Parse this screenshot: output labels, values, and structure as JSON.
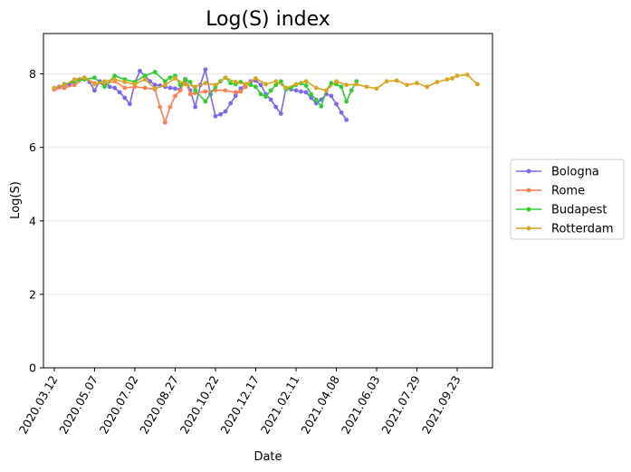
{
  "chart_data": {
    "type": "line",
    "title": "Log(S) index",
    "xlabel": "Date",
    "ylabel": "Log(S)",
    "ylim": [
      0,
      9.1
    ],
    "xlim": [
      "2020-02-26",
      "2021-11-11"
    ],
    "x_ticks": [
      "2020.03.12",
      "2020.05.07",
      "2020.07.02",
      "2020.08.27",
      "2020.10.22",
      "2020.12.17",
      "2021.02.11",
      "2021.04.08",
      "2021.06.03",
      "2021.07.29",
      "2021.09.23"
    ],
    "y_ticks": [
      0,
      2,
      4,
      6,
      8
    ],
    "grid": "horizontal",
    "legend_position": "right",
    "series": [
      {
        "name": "Bologna",
        "color": "#7b68ee",
        "x": [
          "2020-03-12",
          "2020-03-19",
          "2020-03-26",
          "2020-04-02",
          "2020-04-09",
          "2020-04-16",
          "2020-04-23",
          "2020-04-30",
          "2020-05-07",
          "2020-05-14",
          "2020-05-21",
          "2020-05-28",
          "2020-06-04",
          "2020-06-11",
          "2020-06-18",
          "2020-06-25",
          "2020-07-02",
          "2020-07-09",
          "2020-07-16",
          "2020-07-23",
          "2020-07-30",
          "2020-08-06",
          "2020-08-13",
          "2020-08-20",
          "2020-08-27",
          "2020-09-03",
          "2020-09-10",
          "2020-09-17",
          "2020-09-24",
          "2020-10-01",
          "2020-10-08",
          "2020-10-15",
          "2020-10-22",
          "2020-10-29",
          "2020-11-05",
          "2020-11-12",
          "2020-11-19",
          "2020-11-26",
          "2020-12-03",
          "2020-12-10",
          "2020-12-17",
          "2020-12-24",
          "2020-12-31",
          "2021-01-07",
          "2021-01-14",
          "2021-01-21",
          "2021-01-28",
          "2021-02-04",
          "2021-02-11",
          "2021-02-18",
          "2021-02-25",
          "2021-03-04",
          "2021-03-11",
          "2021-03-18",
          "2021-03-25",
          "2021-04-01",
          "2021-04-08",
          "2021-04-15",
          "2021-04-22"
        ],
        "values": [
          7.58,
          7.65,
          7.68,
          7.72,
          7.78,
          7.85,
          7.9,
          7.78,
          7.55,
          7.8,
          7.78,
          7.65,
          7.62,
          7.5,
          7.35,
          7.18,
          7.75,
          8.08,
          7.95,
          7.8,
          7.7,
          7.68,
          7.65,
          7.62,
          7.6,
          7.58,
          7.86,
          7.55,
          7.1,
          7.7,
          8.12,
          7.45,
          6.85,
          6.9,
          6.98,
          7.2,
          7.4,
          7.6,
          7.72,
          7.8,
          7.82,
          7.7,
          7.45,
          7.3,
          7.1,
          6.92,
          7.62,
          7.58,
          7.55,
          7.52,
          7.5,
          7.35,
          7.2,
          7.3,
          7.45,
          7.4,
          7.18,
          6.95,
          6.75
        ]
      },
      {
        "name": "Rome",
        "color": "#ff7f50",
        "x": [
          "2020-03-12",
          "2020-03-26",
          "2020-04-09",
          "2020-04-23",
          "2020-05-07",
          "2020-05-21",
          "2020-06-04",
          "2020-06-18",
          "2020-07-02",
          "2020-07-16",
          "2020-07-30",
          "2020-08-06",
          "2020-08-13",
          "2020-08-20",
          "2020-08-27",
          "2020-09-03",
          "2020-09-10",
          "2020-09-17",
          "2020-09-24",
          "2020-10-08",
          "2020-10-22",
          "2020-11-05",
          "2020-11-19",
          "2020-11-26",
          "2020-12-03"
        ],
        "values": [
          7.58,
          7.62,
          7.7,
          7.88,
          7.75,
          7.72,
          7.8,
          7.62,
          7.65,
          7.62,
          7.58,
          7.1,
          6.68,
          7.1,
          7.4,
          7.55,
          7.82,
          7.45,
          7.48,
          7.52,
          7.56,
          7.55,
          7.5,
          7.52,
          7.65
        ]
      },
      {
        "name": "Budapest",
        "color": "#32cd32",
        "x": [
          "2020-03-26",
          "2020-04-09",
          "2020-04-23",
          "2020-05-07",
          "2020-05-21",
          "2020-06-04",
          "2020-06-18",
          "2020-07-02",
          "2020-07-16",
          "2020-07-30",
          "2020-08-13",
          "2020-08-20",
          "2020-08-27",
          "2020-09-03",
          "2020-09-10",
          "2020-09-17",
          "2020-09-24",
          "2020-10-08",
          "2020-10-22",
          "2020-10-29",
          "2020-11-05",
          "2020-11-12",
          "2020-11-19",
          "2020-11-26",
          "2020-12-03",
          "2020-12-10",
          "2020-12-17",
          "2020-12-24",
          "2020-12-31",
          "2021-01-07",
          "2021-01-14",
          "2021-01-21",
          "2021-01-28",
          "2021-02-04",
          "2021-02-11",
          "2021-02-18",
          "2021-02-25",
          "2021-03-04",
          "2021-03-11",
          "2021-03-18",
          "2021-03-25",
          "2021-04-01",
          "2021-04-08",
          "2021-04-15",
          "2021-04-22",
          "2021-04-29",
          "2021-05-06"
        ],
        "values": [
          7.72,
          7.8,
          7.85,
          7.9,
          7.65,
          7.95,
          7.85,
          7.78,
          7.95,
          8.05,
          7.8,
          7.9,
          7.95,
          7.7,
          7.85,
          7.78,
          7.55,
          7.25,
          7.65,
          7.8,
          7.9,
          7.75,
          7.72,
          7.78,
          7.72,
          7.7,
          7.65,
          7.45,
          7.38,
          7.55,
          7.7,
          7.8,
          7.58,
          7.62,
          7.7,
          7.75,
          7.68,
          7.45,
          7.3,
          7.12,
          7.55,
          7.75,
          7.72,
          7.65,
          7.25,
          7.55,
          7.8
        ]
      },
      {
        "name": "Rotterdam",
        "color": "#daa520",
        "x": [
          "2020-03-12",
          "2020-03-26",
          "2020-04-09",
          "2020-04-23",
          "2020-05-07",
          "2020-05-21",
          "2020-06-04",
          "2020-06-18",
          "2020-07-02",
          "2020-07-16",
          "2020-07-30",
          "2020-08-13",
          "2020-08-27",
          "2020-09-10",
          "2020-09-24",
          "2020-10-08",
          "2020-10-22",
          "2020-11-05",
          "2020-11-19",
          "2020-12-03",
          "2020-12-17",
          "2020-12-31",
          "2021-01-14",
          "2021-01-28",
          "2021-02-11",
          "2021-02-25",
          "2021-03-11",
          "2021-03-25",
          "2021-04-08",
          "2021-04-22",
          "2021-05-06",
          "2021-05-20",
          "2021-06-03",
          "2021-06-17",
          "2021-07-01",
          "2021-07-15",
          "2021-07-29",
          "2021-08-12",
          "2021-08-26",
          "2021-09-09",
          "2021-09-16",
          "2021-09-23",
          "2021-10-07",
          "2021-10-21"
        ],
        "values": [
          7.62,
          7.7,
          7.85,
          7.9,
          7.72,
          7.8,
          7.85,
          7.78,
          7.72,
          7.85,
          7.6,
          7.7,
          7.88,
          7.72,
          7.65,
          7.75,
          7.7,
          7.9,
          7.78,
          7.72,
          7.88,
          7.72,
          7.8,
          7.62,
          7.72,
          7.8,
          7.62,
          7.55,
          7.8,
          7.7,
          7.72,
          7.65,
          7.6,
          7.8,
          7.82,
          7.7,
          7.75,
          7.65,
          7.78,
          7.85,
          7.88,
          7.95,
          7.98,
          7.72
        ]
      }
    ]
  }
}
